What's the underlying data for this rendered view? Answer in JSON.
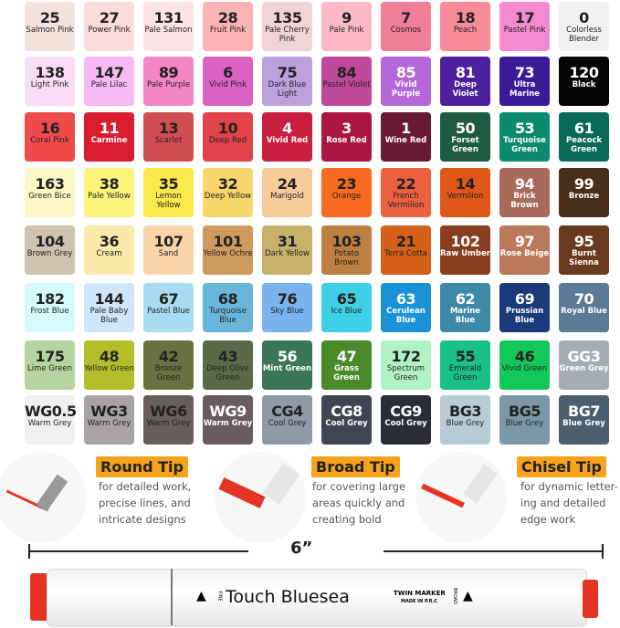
{
  "swatches": [
    [
      "25",
      "Salmon Pink",
      "#f3e3db",
      "#222"
    ],
    [
      "27",
      "Power Pink",
      "#fbdcdc",
      "#222"
    ],
    [
      "131",
      "Pale Salmon",
      "#fde3e6",
      "#222"
    ],
    [
      "28",
      "Fruit Pink",
      "#fbb3b6",
      "#222"
    ],
    [
      "135",
      "Pale Cherry Pink",
      "#f1d2d6",
      "#222"
    ],
    [
      "9",
      "Pale Pink",
      "#fbbac6",
      "#222"
    ],
    [
      "7",
      "Cosmos",
      "#f27d96",
      "#222"
    ],
    [
      "18",
      "Peach",
      "#f98b99",
      "#222"
    ],
    [
      "17",
      "Pastel Pink",
      "#f68ad0",
      "#222"
    ],
    [
      "0",
      "Colorless Blender",
      "#f1f1f1",
      "#222"
    ],
    [
      "138",
      "Light Pink",
      "#fbdcf5",
      "#222"
    ],
    [
      "147",
      "Pale Lilac",
      "#f7b9f4",
      "#222"
    ],
    [
      "89",
      "Pale Purple",
      "#f286c6",
      "#222"
    ],
    [
      "6",
      "Vivid Pink",
      "#db62c0",
      "#222"
    ],
    [
      "75",
      "Dark Blue Light",
      "#bca0dc",
      "#222"
    ],
    [
      "84",
      "Pastel Violet",
      "#c0489a",
      "#222"
    ],
    [
      "85",
      "Vivid Purple",
      "#b468d8",
      "#fff"
    ],
    [
      "81",
      "Deep Violet",
      "#4e20a0",
      "#fff"
    ],
    [
      "73",
      "Ultra Marine",
      "#3a1a96",
      "#fff"
    ],
    [
      "120",
      "Black",
      "#050505",
      "#fff"
    ],
    [
      "16",
      "Coral Pink",
      "#f04a4a",
      "#222"
    ],
    [
      "11",
      "Carmine",
      "#d81e2e",
      "#fff"
    ],
    [
      "13",
      "Scarlet",
      "#d04e52",
      "#222"
    ],
    [
      "10",
      "Deep Red",
      "#e2434a",
      "#222"
    ],
    [
      "4",
      "Vivid Red",
      "#c8203e",
      "#fff"
    ],
    [
      "3",
      "Rose Red",
      "#ac1644",
      "#fff"
    ],
    [
      "1",
      "Wine Red",
      "#6a1a36",
      "#fff"
    ],
    [
      "50",
      "Forset Green",
      "#1f5a42",
      "#fff"
    ],
    [
      "53",
      "Turquoise Green",
      "#0c8a6e",
      "#fff"
    ],
    [
      "61",
      "Peacock Green",
      "#0a6a58",
      "#fff"
    ],
    [
      "163",
      "Green Bice",
      "#fdf6c6",
      "#222"
    ],
    [
      "38",
      "Pale Yellow",
      "#fbf47a",
      "#222"
    ],
    [
      "35",
      "Lemon Yellow",
      "#fbe84a",
      "#222"
    ],
    [
      "32",
      "Deep Yellow",
      "#f9d66a",
      "#222"
    ],
    [
      "24",
      "Marigold",
      "#f8cc9a",
      "#222"
    ],
    [
      "23",
      "Orange",
      "#f76a20",
      "#222"
    ],
    [
      "22",
      "French Vermilion",
      "#ec6040",
      "#222"
    ],
    [
      "14",
      "Vermilion",
      "#e05818",
      "#222"
    ],
    [
      "94",
      "Brick Brown",
      "#a86a5a",
      "#fff"
    ],
    [
      "99",
      "Bronze",
      "#4a2e18",
      "#fff"
    ],
    [
      "104",
      "Brown Grey",
      "#cfc2ae",
      "#222"
    ],
    [
      "36",
      "Cream",
      "#f9eaaa",
      "#222"
    ],
    [
      "107",
      "Sand",
      "#f8d4a8",
      "#222"
    ],
    [
      "101",
      "Yellow Ochre",
      "#cf9a5e",
      "#222"
    ],
    [
      "31",
      "Dark Yellow",
      "#c7b06a",
      "#222"
    ],
    [
      "103",
      "Potato Brown",
      "#bd8040",
      "#222"
    ],
    [
      "21",
      "Terra Cotta",
      "#d4601a",
      "#222"
    ],
    [
      "102",
      "Raw Umber",
      "#8a3e20",
      "#fff"
    ],
    [
      "97",
      "Rose Beige",
      "#b87a5a",
      "#fff"
    ],
    [
      "95",
      "Burnt Sienna",
      "#6a3a1e",
      "#fff"
    ],
    [
      "182",
      "Frost Blue",
      "#d6fafc",
      "#222"
    ],
    [
      "144",
      "Pale Baby Blue",
      "#cfe6fa",
      "#222"
    ],
    [
      "67",
      "Pastel Blue",
      "#a8dcf2",
      "#222"
    ],
    [
      "68",
      "Turquoise Blue",
      "#6ab6da",
      "#222"
    ],
    [
      "76",
      "Sky Blue",
      "#7ab4ee",
      "#222"
    ],
    [
      "65",
      "Ice Blue",
      "#3ed0e6",
      "#222"
    ],
    [
      "63",
      "Cerulean Blue",
      "#1a92d8",
      "#fff"
    ],
    [
      "62",
      "Marine Blue",
      "#3a8aa8",
      "#fff"
    ],
    [
      "69",
      "Prussian Blue",
      "#1a3a7a",
      "#fff"
    ],
    [
      "70",
      "Royal Blue",
      "#5a7a96",
      "#fff"
    ],
    [
      "175",
      "Lime Green",
      "#b4d4a0",
      "#222"
    ],
    [
      "48",
      "Yellow Green",
      "#b4be2a",
      "#222"
    ],
    [
      "42",
      "Bronze Green",
      "#6a7040",
      "#222"
    ],
    [
      "43",
      "Deep Olive Green",
      "#5a6a48",
      "#222"
    ],
    [
      "56",
      "Mint Green",
      "#3a7658",
      "#fff"
    ],
    [
      "47",
      "Grass Green",
      "#4a8a2a",
      "#fff"
    ],
    [
      "172",
      "Spectrum Green",
      "#b0f2c4",
      "#222"
    ],
    [
      "55",
      "Emerald Green",
      "#1ac08a",
      "#222"
    ],
    [
      "46",
      "Vivid Green",
      "#12c85a",
      "#222"
    ],
    [
      "GG3",
      "Green Grey",
      "#a4acb4",
      "#fff"
    ],
    [
      "WG0.5",
      "Warm Grey",
      "#f0f0f0",
      "#222"
    ],
    [
      "WG3",
      "Warm Grey",
      "#a8a4a4",
      "#222"
    ],
    [
      "WG6",
      "Warm Grey",
      "#6a5e5c",
      "#222"
    ],
    [
      "WG9",
      "Warm Grey",
      "#6a5c5e",
      "#fff"
    ],
    [
      "CG4",
      "Cool Grey",
      "#8e9aa6",
      "#222"
    ],
    [
      "CG8",
      "Cool Grey",
      "#3e4452",
      "#fff"
    ],
    [
      "CG9",
      "Cool Grey",
      "#2a2c38",
      "#fff"
    ],
    [
      "BG3",
      "Blue Grey",
      "#b6ccd6",
      "#222"
    ],
    [
      "BG5",
      "Blue Grey",
      "#7a98a8",
      "#222"
    ],
    [
      "BG7",
      "Blue Grey",
      "#4a5e6e",
      "#fff"
    ]
  ],
  "tips": [
    {
      "title": "Round Tip",
      "lines": [
        "for detailed work,",
        "precise lines, and",
        "intricate designs"
      ]
    },
    {
      "title": "Broad Tip",
      "lines": [
        "for covering large",
        "areas quickly and",
        "creating bold"
      ]
    },
    {
      "title": "Chisel Tip",
      "lines": [
        "for dynamic letter-",
        "ing and detailed",
        "edge work"
      ]
    }
  ],
  "measure": "6”",
  "marker": {
    "brand": "Touch Bluesea",
    "line1": "TWIN MARKER",
    "line2": "MADE IN P.R.C",
    "fine": "FINE",
    "broad": "BROAD",
    "cap_color": "#e53424"
  },
  "accent": "#f6a21a"
}
